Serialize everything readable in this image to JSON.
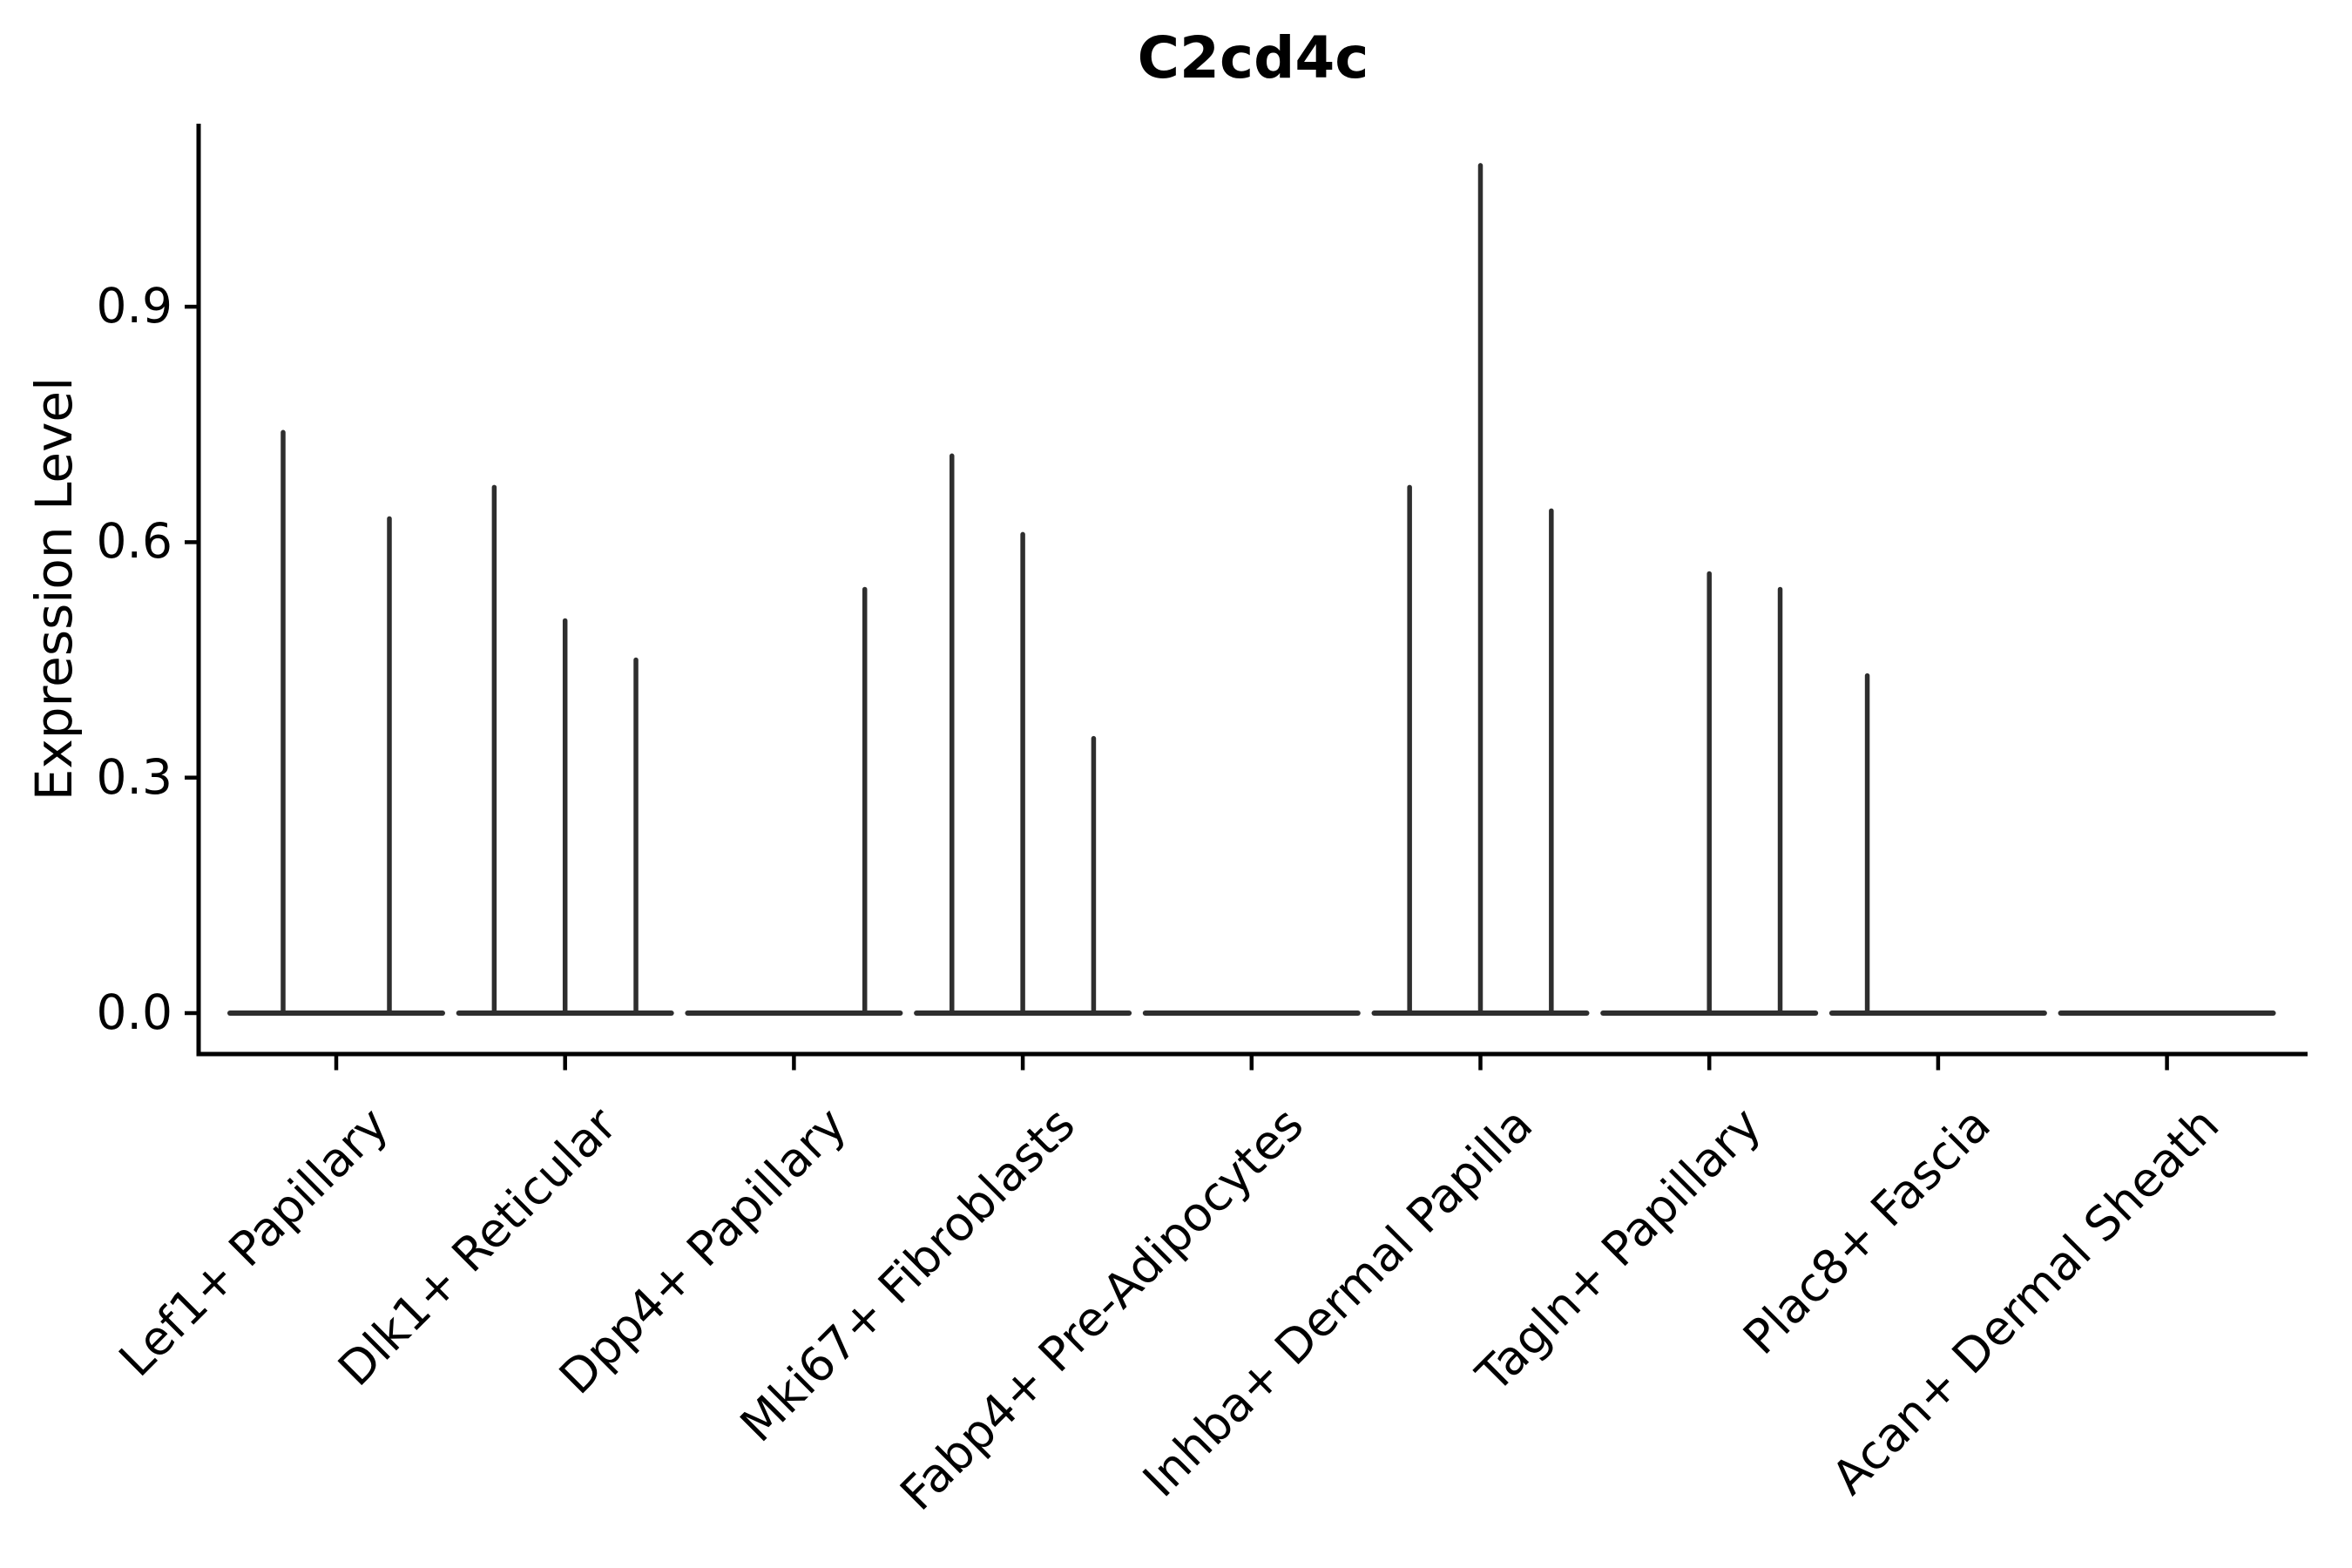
{
  "title": "C2cd4c",
  "y_axis": {
    "label": "Expression Level",
    "tick_labels": [
      "0.0",
      "0.3",
      "0.6",
      "0.9"
    ],
    "tick_values": [
      0.0,
      0.3,
      0.6,
      0.9
    ]
  },
  "x_axis": {
    "categories": [
      "Lef1+ Papillary",
      "Dlk1+ Reticular",
      "Dpp4+ Papillary",
      "Mki67+ Fibroblasts",
      "Fabp4+ Pre-Adipocytes",
      "Inhba+ Dermal Papilla",
      "Tagln+ Papillary",
      "Plac8+ Fascia",
      "Acan+ Dermal Sheath"
    ]
  },
  "colors": {
    "violin": "#2e2e2e",
    "axis": "#000000",
    "text": "#000000",
    "background": "#ffffff"
  },
  "chart_data": {
    "type": "violin",
    "title": "C2cd4c",
    "xlabel": "",
    "ylabel": "Expression Level",
    "ylim": [
      0,
      1.13
    ],
    "yticks": [
      0.0,
      0.3,
      0.6,
      0.9
    ],
    "grid": false,
    "legend": false,
    "categories": [
      "Lef1+ Papillary",
      "Dlk1+ Reticular",
      "Dpp4+ Papillary",
      "Mki67+ Fibroblasts",
      "Fabp4+ Pre-Adipocytes",
      "Inhba+ Dermal Papilla",
      "Tagln+ Papillary",
      "Plac8+ Fascia",
      "Acan+ Dermal Sheath"
    ],
    "description": "Spike-style violins: each category shows 2-3 thin sub-violins; bulk of density is a flat line at 0, with a thin vertical spike rising to the maximum expression value (null = all cells at zero, no spike).",
    "baseline_value": 0.0,
    "max_expression_by_violin": [
      [
        0.74,
        0.63
      ],
      [
        0.67,
        0.5,
        0.45
      ],
      [
        null,
        null,
        0.54
      ],
      [
        0.71,
        0.61,
        0.35
      ],
      [
        null,
        null,
        null
      ],
      [
        0.67,
        1.08,
        0.64
      ],
      [
        null,
        0.56,
        0.54
      ],
      [
        0.43,
        null,
        null
      ],
      [
        null,
        null,
        null
      ]
    ]
  }
}
